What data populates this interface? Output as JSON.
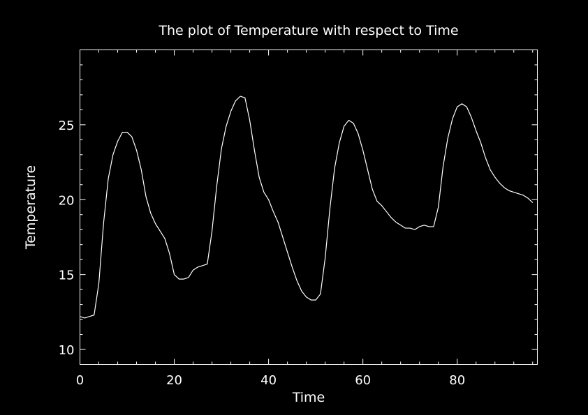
{
  "chart_data": {
    "type": "line",
    "title": "The plot of Temperature with respect to Time",
    "xlabel": "Time",
    "ylabel": "Temperature",
    "xlim": [
      0,
      97
    ],
    "ylim": [
      9,
      30
    ],
    "x_ticks": [
      0,
      20,
      40,
      60,
      80
    ],
    "y_ticks": [
      10,
      15,
      20,
      25
    ],
    "grid": false,
    "colors": {
      "background": "#000000",
      "foreground": "#ffffff",
      "line": "#ffffff"
    },
    "series": [
      {
        "x": [
          0,
          1,
          2,
          3,
          4,
          5,
          6,
          7,
          8,
          9,
          10,
          11,
          12,
          13,
          14,
          15,
          16,
          17,
          18,
          19,
          20,
          21,
          22,
          23,
          24,
          25,
          26,
          27,
          28,
          29,
          30,
          31,
          32,
          33,
          34,
          35,
          36,
          37,
          38,
          39,
          40,
          41,
          42,
          43,
          44,
          45,
          46,
          47,
          48,
          49,
          50,
          51,
          52,
          53,
          54,
          55,
          56,
          57,
          58,
          59,
          60,
          61,
          62,
          63,
          64,
          65,
          66,
          67,
          68,
          69,
          70,
          71,
          72,
          73,
          74,
          75,
          76,
          77,
          78,
          79,
          80,
          81,
          82,
          83,
          84,
          85,
          86,
          87,
          88,
          89,
          90,
          91,
          92,
          93,
          94,
          95,
          96
        ],
        "y": [
          12.2,
          12.1,
          12.2,
          12.3,
          14.4,
          18.4,
          21.4,
          23.0,
          23.9,
          24.5,
          24.5,
          24.2,
          23.3,
          22.0,
          20.2,
          19.1,
          18.4,
          17.9,
          17.4,
          16.4,
          15.0,
          14.7,
          14.7,
          14.8,
          15.3,
          15.5,
          15.6,
          15.7,
          17.9,
          20.9,
          23.4,
          24.9,
          25.9,
          26.6,
          26.9,
          26.8,
          25.3,
          23.3,
          21.5,
          20.5,
          20.0,
          19.2,
          18.5,
          17.5,
          16.5,
          15.5,
          14.6,
          13.9,
          13.5,
          13.3,
          13.3,
          13.7,
          16.1,
          19.4,
          22.1,
          23.8,
          24.9,
          25.3,
          25.1,
          24.4,
          23.3,
          22.0,
          20.7,
          19.9,
          19.6,
          19.2,
          18.8,
          18.5,
          18.3,
          18.1,
          18.1,
          18.0,
          18.2,
          18.3,
          18.2,
          18.2,
          19.5,
          22.2,
          24.1,
          25.4,
          26.2,
          26.4,
          26.2,
          25.5,
          24.6,
          23.8,
          22.8,
          22.0,
          21.5,
          21.1,
          20.8,
          20.6,
          20.5,
          20.4,
          20.3,
          20.1,
          19.8
        ]
      }
    ]
  }
}
